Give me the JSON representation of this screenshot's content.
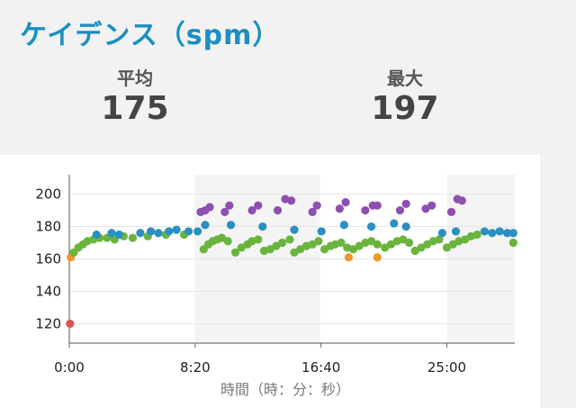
{
  "header": {
    "title": "ケイデンス（spm）"
  },
  "stats": {
    "average": {
      "label": "平均",
      "value": "175"
    },
    "max": {
      "label": "最大",
      "value": "197"
    }
  },
  "colors": {
    "low": "#d9534f",
    "below_avg": "#f0962a",
    "avg": "#6ab43e",
    "above_avg": "#2a8fc1",
    "high": "#8e4fb0",
    "band": "#f4f4f4",
    "grid": "#e6e6e6"
  },
  "chart_data": {
    "type": "scatter",
    "xlabel": "時間（時：分：秒）",
    "ylabel": "",
    "xlim": [
      0,
      29.5
    ],
    "ylim": [
      108,
      212
    ],
    "x_ticks": [
      0,
      8.333,
      16.667,
      25
    ],
    "x_tick_labels": [
      "0:00",
      "8:20",
      "16:40",
      "25:00"
    ],
    "y_ticks": [
      120,
      140,
      160,
      180,
      200
    ],
    "y_tick_labels": [
      "120",
      "140",
      "160",
      "180",
      "200"
    ],
    "shaded_bands": [
      [
        8.3,
        16.6
      ],
      [
        25,
        29.5
      ]
    ],
    "series": [
      {
        "color_key": "low",
        "points": [
          [
            0.05,
            120
          ]
        ]
      },
      {
        "color_key": "below_avg",
        "points": [
          [
            0.1,
            161
          ],
          [
            18.5,
            161
          ],
          [
            20.4,
            161
          ]
        ]
      },
      {
        "color_key": "avg",
        "points": [
          [
            0.3,
            164
          ],
          [
            0.6,
            167
          ],
          [
            0.9,
            169
          ],
          [
            1.2,
            171
          ],
          [
            1.6,
            172
          ],
          [
            2.0,
            173
          ],
          [
            2.5,
            173
          ],
          [
            3.0,
            172
          ],
          [
            3.6,
            174
          ],
          [
            4.2,
            173
          ],
          [
            5.2,
            174
          ],
          [
            6.4,
            175
          ],
          [
            7.6,
            175
          ],
          [
            8.9,
            166
          ],
          [
            9.2,
            169
          ],
          [
            9.5,
            171
          ],
          [
            9.8,
            172
          ],
          [
            10.1,
            173
          ],
          [
            10.5,
            171
          ],
          [
            11.0,
            164
          ],
          [
            11.4,
            167
          ],
          [
            11.8,
            169
          ],
          [
            12.1,
            171
          ],
          [
            12.5,
            172
          ],
          [
            12.9,
            165
          ],
          [
            13.3,
            166
          ],
          [
            13.7,
            168
          ],
          [
            14.1,
            170
          ],
          [
            14.6,
            172
          ],
          [
            14.9,
            164
          ],
          [
            15.3,
            166
          ],
          [
            15.7,
            168
          ],
          [
            16.1,
            169
          ],
          [
            16.5,
            171
          ],
          [
            16.9,
            166
          ],
          [
            17.3,
            168
          ],
          [
            17.6,
            169
          ],
          [
            18.0,
            170
          ],
          [
            18.4,
            167
          ],
          [
            18.8,
            166
          ],
          [
            19.2,
            168
          ],
          [
            19.6,
            170
          ],
          [
            20.0,
            171
          ],
          [
            20.4,
            169
          ],
          [
            20.9,
            167
          ],
          [
            21.3,
            169
          ],
          [
            21.7,
            171
          ],
          [
            22.1,
            172
          ],
          [
            22.5,
            170
          ],
          [
            22.9,
            165
          ],
          [
            23.3,
            167
          ],
          [
            23.7,
            169
          ],
          [
            24.1,
            171
          ],
          [
            24.5,
            172
          ],
          [
            25.0,
            167
          ],
          [
            25.4,
            169
          ],
          [
            25.8,
            171
          ],
          [
            26.2,
            172
          ],
          [
            26.6,
            174
          ],
          [
            27.0,
            175
          ],
          [
            29.4,
            170
          ]
        ]
      },
      {
        "color_key": "above_avg",
        "points": [
          [
            1.8,
            175
          ],
          [
            2.8,
            176
          ],
          [
            3.3,
            175
          ],
          [
            4.7,
            176
          ],
          [
            5.4,
            177
          ],
          [
            5.9,
            176
          ],
          [
            6.6,
            177
          ],
          [
            7.1,
            178
          ],
          [
            7.9,
            177
          ],
          [
            8.5,
            177
          ],
          [
            9.0,
            181
          ],
          [
            10.7,
            181
          ],
          [
            12.8,
            180
          ],
          [
            14.9,
            178
          ],
          [
            16.7,
            177
          ],
          [
            18.2,
            181
          ],
          [
            20.0,
            180
          ],
          [
            21.5,
            182
          ],
          [
            22.3,
            180
          ],
          [
            24.7,
            176
          ],
          [
            25.6,
            177
          ],
          [
            27.5,
            177
          ],
          [
            28.0,
            176
          ],
          [
            28.5,
            177
          ],
          [
            29.0,
            176
          ],
          [
            29.4,
            176
          ]
        ]
      },
      {
        "color_key": "high",
        "points": [
          [
            8.7,
            189
          ],
          [
            9.0,
            190
          ],
          [
            9.3,
            192
          ],
          [
            10.3,
            189
          ],
          [
            10.6,
            193
          ],
          [
            12.1,
            190
          ],
          [
            12.5,
            193
          ],
          [
            13.8,
            190
          ],
          [
            14.3,
            197
          ],
          [
            14.7,
            196
          ],
          [
            16.1,
            189
          ],
          [
            16.4,
            193
          ],
          [
            17.9,
            191
          ],
          [
            18.3,
            195
          ],
          [
            19.6,
            190
          ],
          [
            20.1,
            193
          ],
          [
            20.4,
            193
          ],
          [
            21.9,
            190
          ],
          [
            22.3,
            194
          ],
          [
            23.6,
            191
          ],
          [
            24.0,
            193
          ],
          [
            25.3,
            189
          ],
          [
            25.7,
            197
          ],
          [
            26.0,
            196
          ]
        ]
      }
    ]
  }
}
